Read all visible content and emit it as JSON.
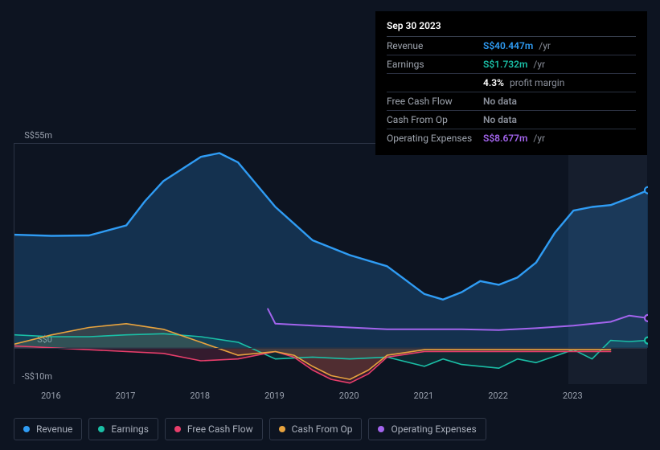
{
  "tooltip": {
    "date": "Sep 30 2023",
    "rows": [
      {
        "label": "Revenue",
        "value": "S$40.447m",
        "value_color": "#2f9cf4",
        "sub": "/yr"
      },
      {
        "label": "Earnings",
        "value": "S$1.732m",
        "value_color": "#1abfa6",
        "sub": "/yr"
      },
      {
        "label": "",
        "value": "4.3%",
        "value_color": "#ffffff",
        "sub": "profit margin"
      },
      {
        "label": "Free Cash Flow",
        "value": "No data",
        "value_color": "#8a8f9a",
        "sub": ""
      },
      {
        "label": "Cash From Op",
        "value": "No data",
        "value_color": "#8a8f9a",
        "sub": ""
      },
      {
        "label": "Operating Expenses",
        "value": "S$8.677m",
        "value_color": "#a364ed",
        "sub": "/yr"
      }
    ]
  },
  "chart": {
    "type": "area-line",
    "background_color": "#0d1421",
    "grid_color": "#2a3244",
    "text_color": "#9aa1ae",
    "y_axis": {
      "max_label": "S$55m",
      "zero_label": "S$0",
      "min_label": "-S$10m",
      "max": 55,
      "zero": 0,
      "min": -10
    },
    "x_axis": {
      "labels": [
        "2016",
        "2017",
        "2018",
        "2019",
        "2020",
        "2021",
        "2022",
        "2023"
      ],
      "start": 2015.5,
      "end": 2024.0
    },
    "future_start": 2022.95,
    "series": {
      "revenue": {
        "color": "#2f9cf4",
        "fill_opacity": 0.22,
        "stroke_width": 2.4,
        "data": [
          [
            2015.5,
            30.5
          ],
          [
            2016.0,
            30.2
          ],
          [
            2016.5,
            30.3
          ],
          [
            2017.0,
            33.0
          ],
          [
            2017.25,
            39.5
          ],
          [
            2017.5,
            45.0
          ],
          [
            2018.0,
            51.5
          ],
          [
            2018.25,
            52.5
          ],
          [
            2018.5,
            50.0
          ],
          [
            2019.0,
            38.0
          ],
          [
            2019.5,
            29.0
          ],
          [
            2020.0,
            25.0
          ],
          [
            2020.5,
            22.0
          ],
          [
            2021.0,
            14.5
          ],
          [
            2021.25,
            13.0
          ],
          [
            2021.5,
            15.0
          ],
          [
            2021.75,
            18.0
          ],
          [
            2022.0,
            17.0
          ],
          [
            2022.25,
            19.0
          ],
          [
            2022.5,
            23.0
          ],
          [
            2022.75,
            31.0
          ],
          [
            2023.0,
            37.0
          ],
          [
            2023.25,
            38.0
          ],
          [
            2023.5,
            38.5
          ],
          [
            2023.75,
            40.4
          ],
          [
            2024.0,
            42.5
          ]
        ]
      },
      "earnings": {
        "color": "#1abfa6",
        "fill_opacity": 0.12,
        "stroke_width": 1.6,
        "data": [
          [
            2015.5,
            3.5
          ],
          [
            2016.0,
            3.0
          ],
          [
            2016.5,
            3.0
          ],
          [
            2017.0,
            3.5
          ],
          [
            2017.5,
            3.8
          ],
          [
            2018.0,
            3.0
          ],
          [
            2018.5,
            1.5
          ],
          [
            2019.0,
            -3.0
          ],
          [
            2019.5,
            -2.5
          ],
          [
            2020.0,
            -3.0
          ],
          [
            2020.5,
            -2.5
          ],
          [
            2021.0,
            -5.0
          ],
          [
            2021.25,
            -3.0
          ],
          [
            2021.5,
            -4.5
          ],
          [
            2022.0,
            -5.5
          ],
          [
            2022.25,
            -3.0
          ],
          [
            2022.5,
            -4.0
          ],
          [
            2023.0,
            -0.5
          ],
          [
            2023.25,
            -3.0
          ],
          [
            2023.5,
            2.0
          ],
          [
            2023.75,
            1.7
          ],
          [
            2024.0,
            2.0
          ]
        ]
      },
      "free_cash_flow": {
        "color": "#e83e6b",
        "fill_opacity": 0.18,
        "stroke_width": 1.6,
        "data": [
          [
            2015.5,
            0.5
          ],
          [
            2016.0,
            0.0
          ],
          [
            2016.5,
            -0.5
          ],
          [
            2017.0,
            -1.0
          ],
          [
            2017.5,
            -1.5
          ],
          [
            2018.0,
            -3.5
          ],
          [
            2018.5,
            -3.0
          ],
          [
            2019.0,
            -1.0
          ],
          [
            2019.25,
            -2.5
          ],
          [
            2019.5,
            -6.0
          ],
          [
            2019.75,
            -8.5
          ],
          [
            2020.0,
            -9.5
          ],
          [
            2020.25,
            -7.0
          ],
          [
            2020.5,
            -2.5
          ],
          [
            2021.0,
            -1.0
          ],
          [
            2021.5,
            -1.0
          ],
          [
            2022.0,
            -1.0
          ],
          [
            2022.5,
            -1.0
          ],
          [
            2023.0,
            -1.0
          ],
          [
            2023.5,
            -1.0
          ]
        ]
      },
      "cash_from_op": {
        "color": "#e8a33e",
        "fill_opacity": 0.16,
        "stroke_width": 1.6,
        "data": [
          [
            2015.5,
            1.0
          ],
          [
            2016.0,
            3.5
          ],
          [
            2016.5,
            5.5
          ],
          [
            2017.0,
            6.5
          ],
          [
            2017.5,
            5.0
          ],
          [
            2018.0,
            1.5
          ],
          [
            2018.5,
            -2.0
          ],
          [
            2019.0,
            -1.0
          ],
          [
            2019.25,
            -2.0
          ],
          [
            2019.5,
            -5.0
          ],
          [
            2019.75,
            -7.5
          ],
          [
            2020.0,
            -8.5
          ],
          [
            2020.25,
            -6.0
          ],
          [
            2020.5,
            -2.0
          ],
          [
            2021.0,
            -0.5
          ],
          [
            2021.5,
            -0.5
          ],
          [
            2022.0,
            -0.5
          ],
          [
            2022.5,
            -0.5
          ],
          [
            2023.0,
            -0.5
          ],
          [
            2023.5,
            -0.5
          ]
        ]
      },
      "operating_expenses": {
        "color": "#a364ed",
        "fill_opacity": 0.0,
        "stroke_width": 2.0,
        "data": [
          [
            2018.9,
            10.5
          ],
          [
            2019.0,
            6.5
          ],
          [
            2019.5,
            6.0
          ],
          [
            2020.0,
            5.5
          ],
          [
            2020.5,
            5.0
          ],
          [
            2021.0,
            5.0
          ],
          [
            2021.5,
            5.0
          ],
          [
            2022.0,
            4.8
          ],
          [
            2022.5,
            5.3
          ],
          [
            2023.0,
            6.0
          ],
          [
            2023.5,
            7.0
          ],
          [
            2023.75,
            8.7
          ],
          [
            2024.0,
            8.0
          ]
        ]
      }
    },
    "end_markers": [
      {
        "x": 2024.0,
        "y": 42.5,
        "color": "#2f9cf4"
      },
      {
        "x": 2024.0,
        "y": 2.0,
        "color": "#1abfa6"
      },
      {
        "x": 2024.0,
        "y": 8.0,
        "color": "#a364ed"
      }
    ]
  },
  "legend": [
    {
      "label": "Revenue",
      "color": "#2f9cf4"
    },
    {
      "label": "Earnings",
      "color": "#1abfa6"
    },
    {
      "label": "Free Cash Flow",
      "color": "#e83e6b"
    },
    {
      "label": "Cash From Op",
      "color": "#e8a33e"
    },
    {
      "label": "Operating Expenses",
      "color": "#a364ed"
    }
  ]
}
